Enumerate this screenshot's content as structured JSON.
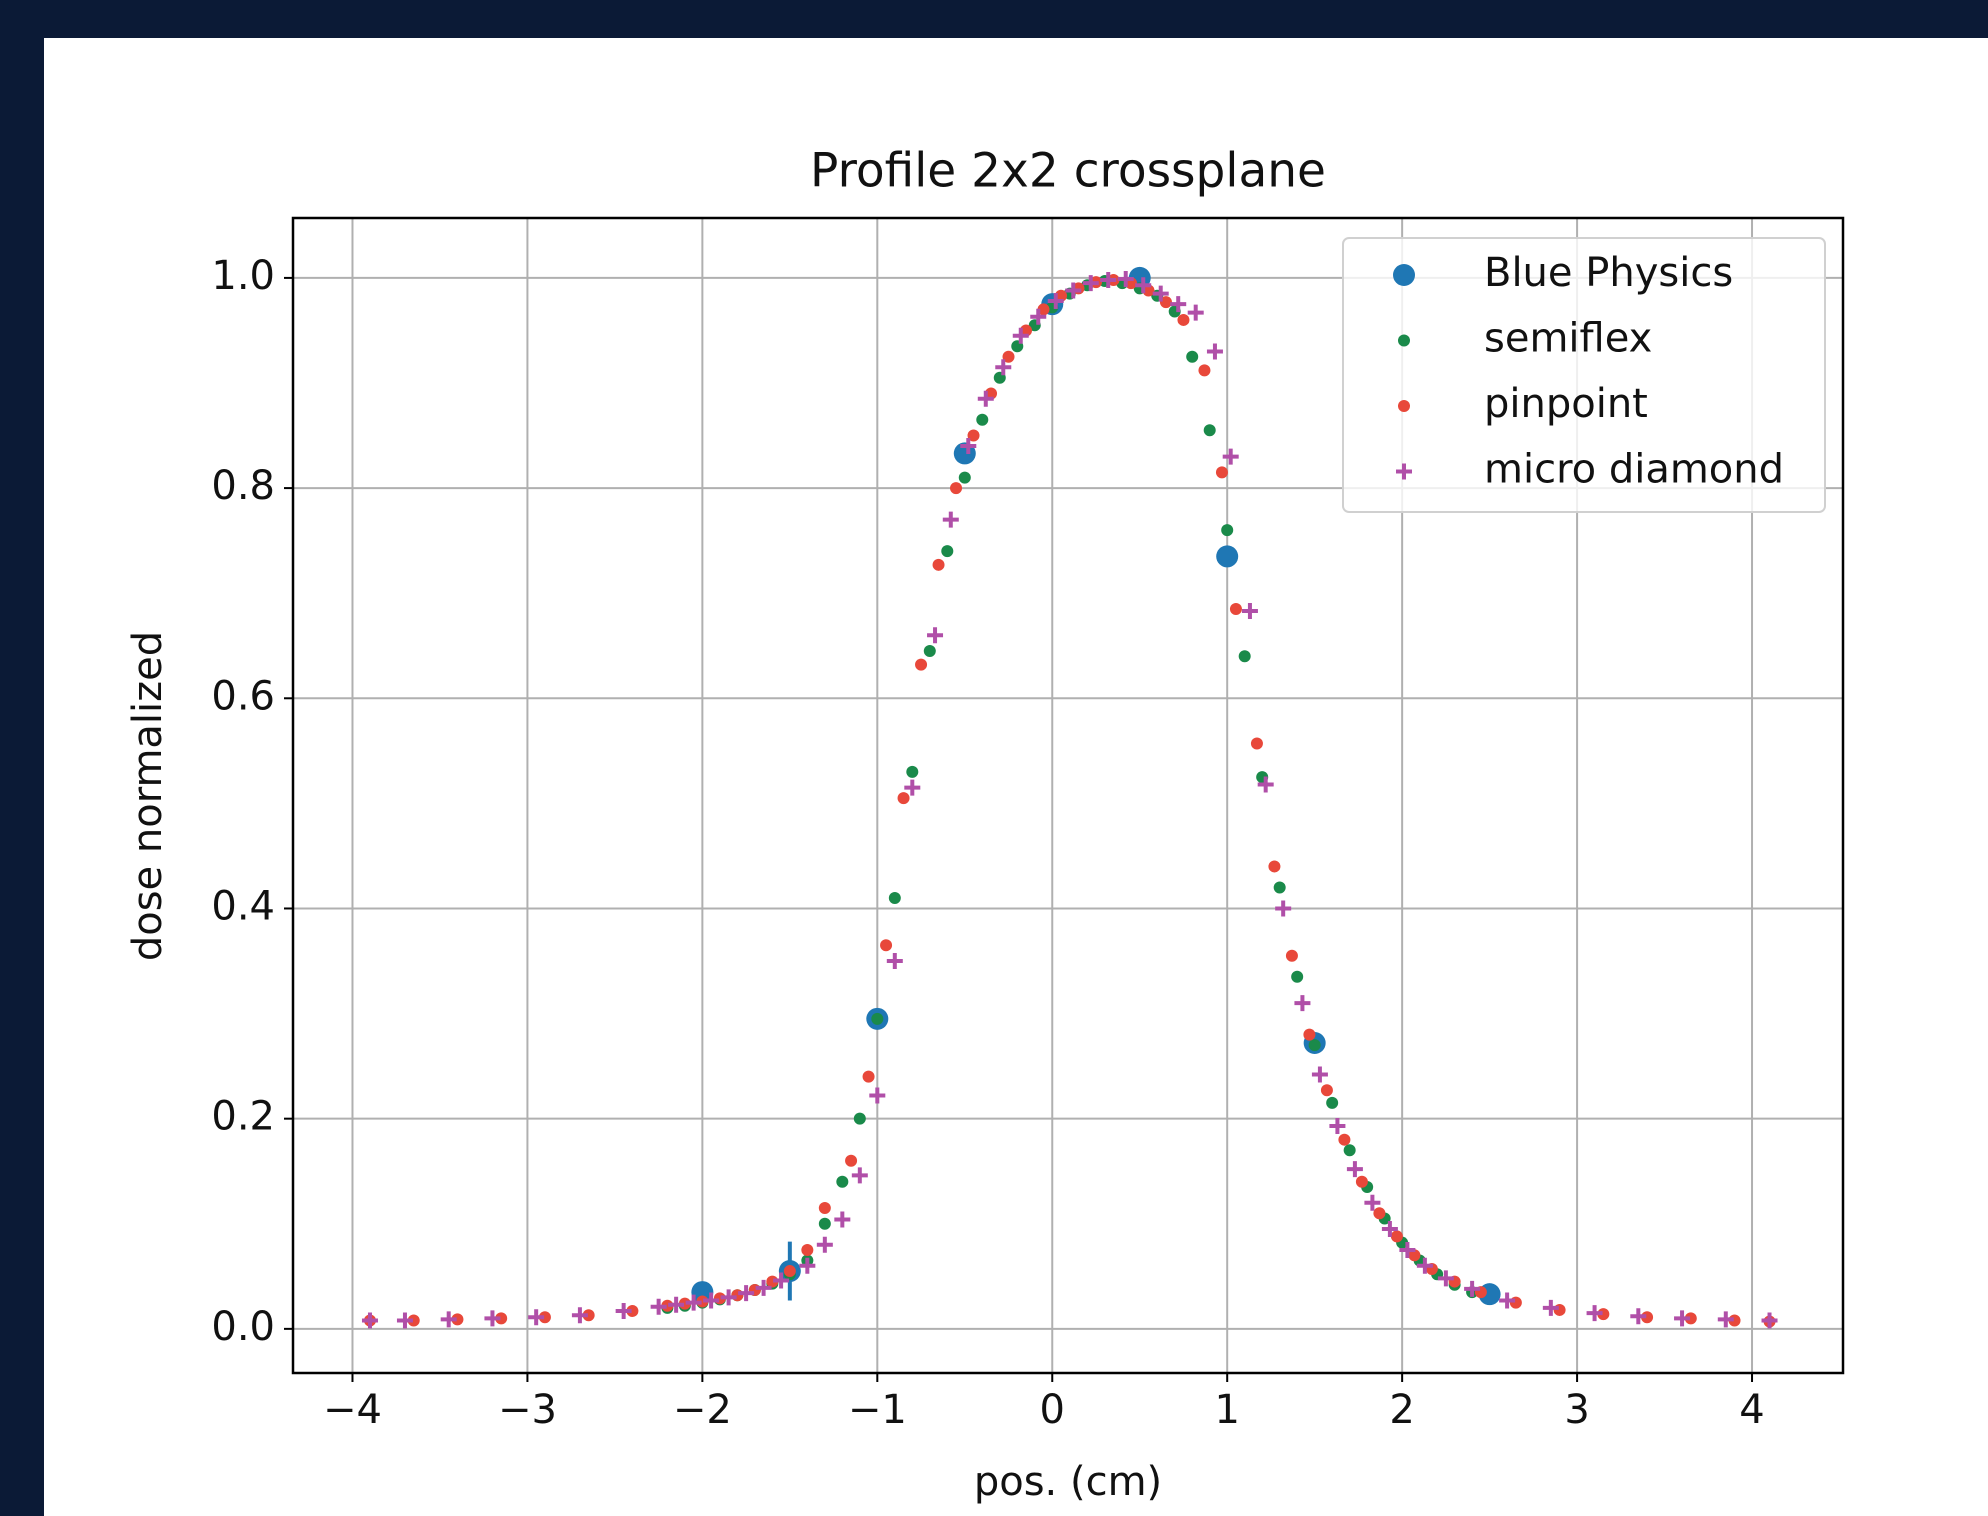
{
  "chart_data": {
    "type": "scatter",
    "title": "Profile 2x2 crossplane",
    "xlabel": "pos. (cm)",
    "ylabel": "dose normalized",
    "xlim": [
      -4.34,
      4.52
    ],
    "ylim": [
      -0.042,
      1.057
    ],
    "xticks": [
      {
        "value": -4,
        "label": "−4"
      },
      {
        "value": -3,
        "label": "−3"
      },
      {
        "value": -2,
        "label": "−2"
      },
      {
        "value": -1,
        "label": "−1"
      },
      0,
      1,
      2,
      3,
      4
    ],
    "yticks": [
      {
        "value": 0,
        "label": "0.0"
      },
      0.2,
      0.4,
      0.6,
      0.8,
      {
        "value": 1,
        "label": "1.0"
      }
    ],
    "grid": true,
    "legend": "upper right",
    "series": [
      {
        "name": "Blue Physics",
        "color": "#1f77b4",
        "marker": "circle",
        "x": [
          -2,
          -1.5,
          -1,
          -0.5,
          0,
          0.5,
          1,
          1.5,
          2.5
        ],
        "values": [
          0.035,
          0.055,
          0.295,
          0.833,
          0.975,
          1.0,
          0.735,
          0.272,
          0.033
        ],
        "errors": [
          null,
          0.028,
          null,
          null,
          null,
          null,
          null,
          null,
          null
        ]
      },
      {
        "name": "semiflex",
        "color": "#1a8a4a",
        "marker": "dot",
        "x": [
          -2.2,
          -2.1,
          -2.0,
          -1.9,
          -1.8,
          -1.7,
          -1.6,
          -1.5,
          -1.4,
          -1.3,
          -1.2,
          -1.1,
          -1.0,
          -0.9,
          -0.8,
          -0.7,
          -0.6,
          -0.5,
          -0.4,
          -0.3,
          -0.2,
          -0.1,
          0,
          0.1,
          0.2,
          0.3,
          0.4,
          0.5,
          0.6,
          0.7,
          0.8,
          0.9,
          1.0,
          1.1,
          1.2,
          1.3,
          1.4,
          1.5,
          1.6,
          1.7,
          1.8,
          1.9,
          2.0,
          2.1,
          2.2,
          2.3,
          2.4
        ],
        "values": [
          0.02,
          0.022,
          0.025,
          0.028,
          0.032,
          0.037,
          0.043,
          0.052,
          0.065,
          0.1,
          0.14,
          0.2,
          0.295,
          0.41,
          0.53,
          0.645,
          0.74,
          0.81,
          0.865,
          0.905,
          0.935,
          0.955,
          0.972,
          0.985,
          0.993,
          0.997,
          0.995,
          0.99,
          0.983,
          0.968,
          0.925,
          0.855,
          0.76,
          0.64,
          0.525,
          0.42,
          0.335,
          0.27,
          0.215,
          0.17,
          0.135,
          0.105,
          0.082,
          0.065,
          0.052,
          0.042,
          0.035
        ]
      },
      {
        "name": "pinpoint",
        "color": "#e8483a",
        "marker": "dot",
        "x": [
          -3.9,
          -3.65,
          -3.4,
          -3.15,
          -2.9,
          -2.65,
          -2.4,
          -2.2,
          -2.1,
          -2.0,
          -1.9,
          -1.8,
          -1.7,
          -1.6,
          -1.5,
          -1.4,
          -1.3,
          -1.15,
          -1.05,
          -0.95,
          -0.85,
          -0.75,
          -0.65,
          -0.55,
          -0.45,
          -0.35,
          -0.25,
          -0.15,
          -0.05,
          0.05,
          0.15,
          0.25,
          0.35,
          0.45,
          0.55,
          0.65,
          0.75,
          0.87,
          0.97,
          1.05,
          1.17,
          1.27,
          1.37,
          1.47,
          1.57,
          1.67,
          1.77,
          1.87,
          1.97,
          2.07,
          2.17,
          2.3,
          2.45,
          2.65,
          2.9,
          3.15,
          3.4,
          3.65,
          3.9,
          4.1
        ],
        "values": [
          0.008,
          0.008,
          0.009,
          0.01,
          0.011,
          0.013,
          0.017,
          0.022,
          0.024,
          0.026,
          0.029,
          0.032,
          0.037,
          0.045,
          0.055,
          0.075,
          0.115,
          0.16,
          0.24,
          0.365,
          0.505,
          0.632,
          0.727,
          0.8,
          0.85,
          0.89,
          0.925,
          0.95,
          0.97,
          0.983,
          0.99,
          0.996,
          0.998,
          0.995,
          0.988,
          0.977,
          0.96,
          0.912,
          0.815,
          0.685,
          0.557,
          0.44,
          0.355,
          0.28,
          0.227,
          0.18,
          0.14,
          0.11,
          0.088,
          0.07,
          0.057,
          0.045,
          0.035,
          0.025,
          0.018,
          0.014,
          0.011,
          0.01,
          0.008,
          0.007
        ]
      },
      {
        "name": "micro diamond",
        "color": "#b04fa8",
        "marker": "plus",
        "x": [
          -3.9,
          -3.7,
          -3.45,
          -3.2,
          -2.95,
          -2.7,
          -2.45,
          -2.25,
          -2.15,
          -2.05,
          -1.95,
          -1.85,
          -1.75,
          -1.65,
          -1.55,
          -1.4,
          -1.3,
          -1.2,
          -1.1,
          -1.0,
          -0.9,
          -0.8,
          -0.67,
          -0.58,
          -0.48,
          -0.38,
          -0.28,
          -0.18,
          -0.08,
          0.02,
          0.12,
          0.22,
          0.32,
          0.42,
          0.52,
          0.62,
          0.72,
          0.82,
          0.93,
          1.02,
          1.13,
          1.22,
          1.32,
          1.43,
          1.53,
          1.63,
          1.73,
          1.83,
          1.93,
          2.03,
          2.13,
          2.25,
          2.4,
          2.6,
          2.85,
          3.1,
          3.35,
          3.6,
          3.85,
          4.1
        ],
        "values": [
          0.008,
          0.008,
          0.009,
          0.01,
          0.011,
          0.013,
          0.017,
          0.021,
          0.023,
          0.025,
          0.027,
          0.03,
          0.034,
          0.039,
          0.046,
          0.06,
          0.08,
          0.104,
          0.146,
          0.222,
          0.35,
          0.515,
          0.66,
          0.77,
          0.84,
          0.885,
          0.915,
          0.945,
          0.963,
          0.978,
          0.988,
          0.995,
          0.998,
          0.999,
          0.993,
          0.985,
          0.975,
          0.967,
          0.93,
          0.83,
          0.683,
          0.518,
          0.4,
          0.31,
          0.242,
          0.193,
          0.152,
          0.12,
          0.095,
          0.075,
          0.06,
          0.048,
          0.038,
          0.027,
          0.02,
          0.015,
          0.012,
          0.01,
          0.009,
          0.008
        ]
      }
    ]
  }
}
